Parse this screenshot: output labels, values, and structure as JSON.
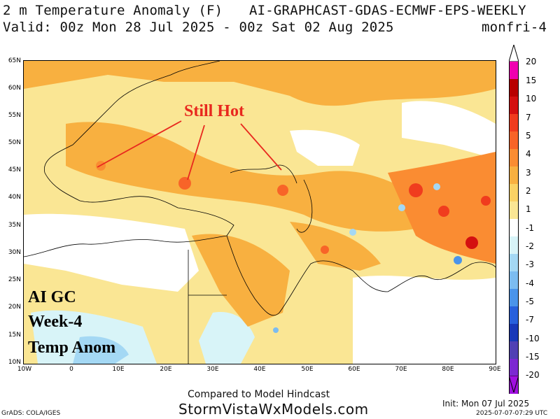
{
  "header": {
    "title_left": "2 m Temperature Anomaly (F)",
    "title_right": "AI-GRAPHCAST-GDAS-ECMWF-EPS-WEEKLY",
    "valid_left": "Valid: 00z Mon 28 Jul 2025 - 00z Sat 02 Aug 2025",
    "valid_right": "monfri-4"
  },
  "map": {
    "lat_labels": [
      "65N",
      "60N",
      "55N",
      "50N",
      "45N",
      "40N",
      "35N",
      "30N",
      "25N",
      "20N",
      "15N",
      "10N"
    ],
    "lon_labels": [
      "10W",
      "0",
      "10E",
      "20E",
      "30E",
      "40E",
      "50E",
      "60E",
      "70E",
      "80E",
      "90E"
    ],
    "annotation": "Still Hot",
    "overlay_lines": [
      "AI GC",
      "Week-4",
      "Temp Anom"
    ]
  },
  "colorbar": {
    "labels": [
      "20",
      "15",
      "10",
      "7",
      "5",
      "4",
      "3",
      "2",
      "1",
      "-1",
      "-2",
      "-3",
      "-4",
      "-5",
      "-7",
      "-10",
      "-15",
      "-20"
    ],
    "colors": [
      "#f000b0",
      "#b80000",
      "#d41010",
      "#f03c1e",
      "#f86428",
      "#fa8c32",
      "#f8b040",
      "#fad264",
      "#fae694",
      "#ffffff",
      "#d8f4f8",
      "#a4d8f4",
      "#7cbcf0",
      "#4a94ea",
      "#2860dc",
      "#1838b8",
      "#5040b4",
      "#7c28d2",
      "#a010e0"
    ]
  },
  "footer": {
    "compared": "Compared to Model Hindcast",
    "site": "StormVistaWxModels.com",
    "init": "Init: Mon 07 Jul 2025",
    "stamp": "2025-07-07-07:29 UTC",
    "grads": "GrADS: COLA/IGES"
  }
}
